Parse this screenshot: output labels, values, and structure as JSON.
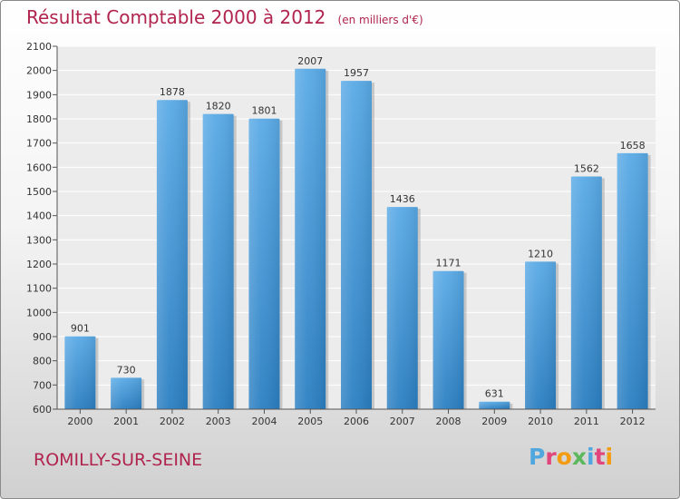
{
  "title": "Résultat Comptable 2000 à 2012",
  "subtitle": "(en milliers d'€)",
  "commune": "ROMILLY-SUR-SEINE",
  "brand": "Proxiti",
  "brand_colors": [
    "#4fa7de",
    "#e0457b",
    "#f39c12",
    "#5cb85c",
    "#4fa7de",
    "#e0457b",
    "#f39c12"
  ],
  "colors": {
    "bar_light": "#6fb5ea",
    "bar_dark": "#2b86c9",
    "title": "#b0244e"
  },
  "chart_data": {
    "type": "bar",
    "categories": [
      "2000",
      "2001",
      "2002",
      "2003",
      "2004",
      "2005",
      "2006",
      "2007",
      "2008",
      "2009",
      "2010",
      "2011",
      "2012"
    ],
    "values": [
      901,
      730,
      1878,
      1820,
      1801,
      2007,
      1957,
      1436,
      1171,
      631,
      1210,
      1562,
      1658
    ],
    "ylim": [
      600,
      2100
    ],
    "yticks": [
      600,
      700,
      800,
      900,
      1000,
      1100,
      1200,
      1300,
      1400,
      1500,
      1600,
      1700,
      1800,
      1900,
      2000,
      2100
    ],
    "grid": true,
    "legend": "none"
  }
}
